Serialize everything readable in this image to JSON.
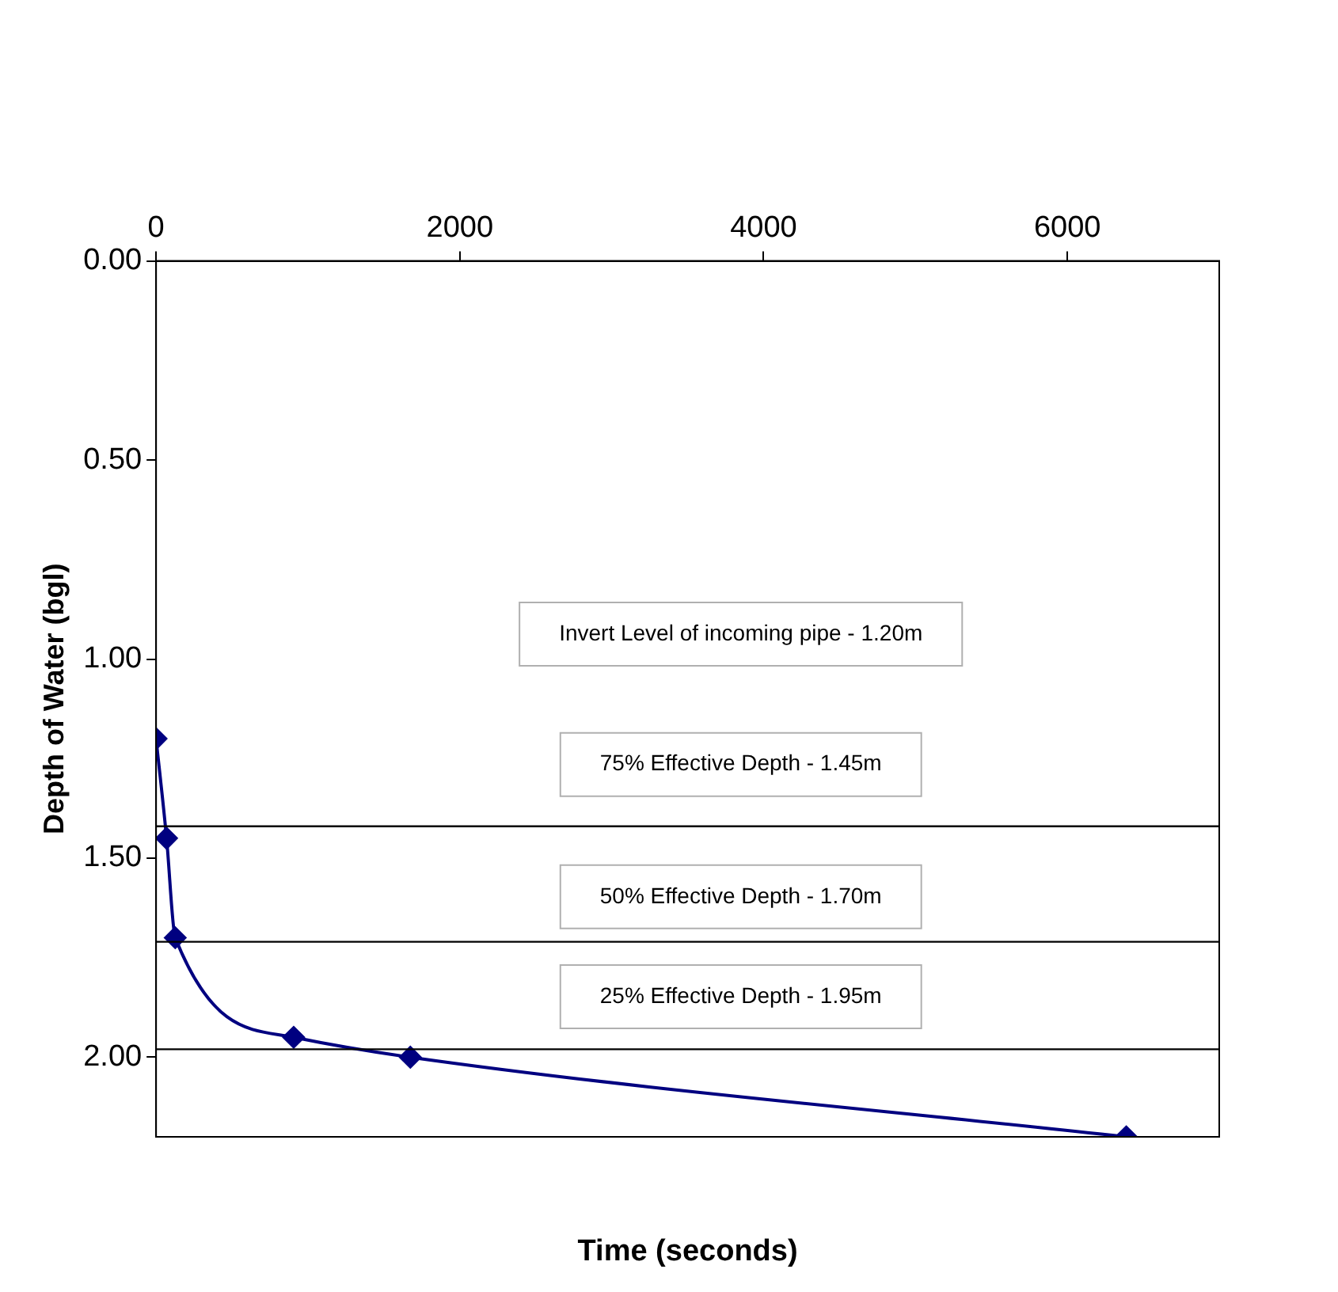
{
  "chart_data": {
    "type": "line",
    "xlabel": "Time (seconds)",
    "ylabel": "Depth of Water (bgl)",
    "x": [
      0,
      69,
      126,
      906,
      1674,
      6388
    ],
    "series": [
      {
        "color": "#000080",
        "values": [
          1.2,
          1.45,
          1.7,
          1.95,
          2.0,
          2.2
        ]
      }
    ],
    "xlim": [
      0,
      7000
    ],
    "xticks": [
      0,
      2000,
      4000,
      6000
    ],
    "ylim": [
      2.2,
      0
    ],
    "yticks": [
      {
        "value": 0,
        "label": "0.00"
      },
      {
        "value": 0.5,
        "label": "0.50"
      },
      {
        "value": 1,
        "label": "1.00"
      },
      {
        "value": 1.5,
        "label": "1.50"
      },
      {
        "value": 2,
        "label": "2.00"
      }
    ],
    "ref_lines": [
      {
        "axis": "y",
        "value": 1.42,
        "color": "#000000"
      },
      {
        "axis": "y",
        "value": 1.71,
        "color": "#000000"
      },
      {
        "axis": "y",
        "value": 1.98,
        "color": "#000000"
      }
    ],
    "annotations": [
      "Invert Level of incoming pipe - 1.20m",
      "75% Effective Depth - 1.45m",
      "50% Effective Depth - 1.70m",
      "25% Effective Depth - 1.95m"
    ],
    "grid": false,
    "legend": false,
    "marker": "diamond",
    "line_style": "solid"
  }
}
